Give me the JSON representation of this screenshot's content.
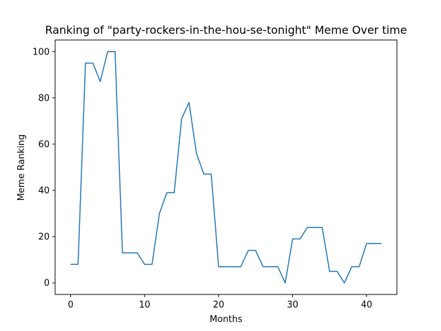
{
  "chart_data": {
    "type": "line",
    "title": "Ranking of \"party-rockers-in-the-hou-se-tonight\" Meme Over time",
    "xlabel": "Months",
    "ylabel": "Meme Ranking",
    "xlim": [
      -2.1,
      44.1
    ],
    "ylim": [
      -5,
      105
    ],
    "xticks": [
      0,
      10,
      20,
      30,
      40
    ],
    "yticks": [
      0,
      20,
      40,
      60,
      80,
      100
    ],
    "grid": false,
    "legend": "none",
    "colors": {
      "line": "#1f77b4",
      "axes": "#000000"
    },
    "series": [
      {
        "x": [
          0,
          1,
          2,
          3,
          4,
          5,
          6,
          7,
          8,
          9,
          10,
          11,
          12,
          13,
          14,
          15,
          16,
          17,
          18,
          19,
          20,
          21,
          22,
          23,
          24,
          25,
          26,
          27,
          28,
          29,
          30,
          31,
          32,
          33,
          34,
          35,
          36,
          37,
          38,
          39,
          40,
          41,
          42
        ],
        "values": [
          8,
          8,
          95,
          95,
          87,
          100,
          100,
          13,
          13,
          13,
          8,
          8,
          30,
          39,
          39,
          71,
          78,
          56,
          47,
          47,
          7,
          7,
          7,
          7,
          14,
          14,
          7,
          7,
          7,
          0,
          19,
          19,
          24,
          24,
          24,
          5,
          5,
          0,
          7,
          7,
          17,
          17,
          17
        ]
      }
    ]
  }
}
